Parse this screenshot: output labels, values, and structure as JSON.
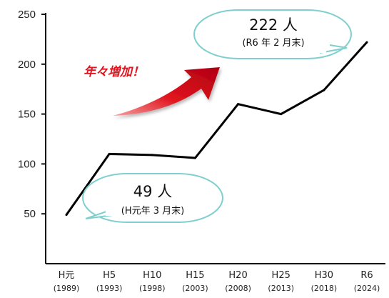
{
  "chart_data": {
    "type": "line",
    "categories": [
      "H元",
      "H5",
      "H10",
      "H15",
      "H20",
      "H25",
      "H30",
      "R6"
    ],
    "category_years": [
      "(1989)",
      "(1993)",
      "(1998)",
      "(2003)",
      "(2008)",
      "(2013)",
      "(2018)",
      "(2024)"
    ],
    "values": [
      49,
      110,
      109,
      106,
      160,
      150,
      174,
      222
    ],
    "ylim": [
      0,
      250
    ],
    "yticks": [
      50,
      100,
      150,
      200,
      250
    ],
    "ytick_labels": [
      "50",
      "100",
      "150",
      "200",
      "250"
    ],
    "grid": false,
    "line_color": "#000000",
    "annotations": {
      "end": {
        "value": "222 人",
        "note": "(R6 年 2 月末)"
      },
      "start": {
        "value": "49 人",
        "note": "(H元年 3 月末)"
      },
      "trend": "年々増加！"
    },
    "colors": {
      "callout_fill": "#ffffff",
      "callout_border": "#7fcfcf",
      "arrow": "#e0141e",
      "trend_text": "#e0141e"
    }
  }
}
